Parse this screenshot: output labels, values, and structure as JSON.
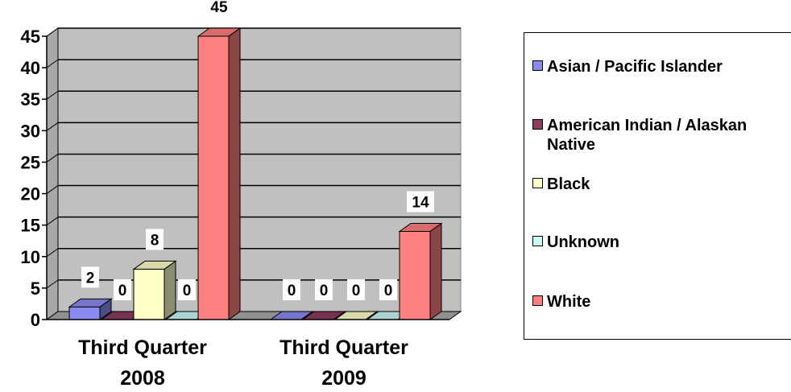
{
  "chart_data": {
    "type": "bar",
    "title": "",
    "xlabel": "",
    "ylabel": "",
    "ylim": [
      0,
      45
    ],
    "yticks": [
      0,
      5,
      10,
      15,
      20,
      25,
      30,
      35,
      40,
      45
    ],
    "grid": true,
    "three_d": true,
    "legend_position": "right",
    "categories": [
      "Third Quarter 2008",
      "Third Quarter 2009"
    ],
    "series": [
      {
        "name": "Asian / Pacific Islander",
        "values": [
          2,
          0
        ],
        "color": "#8A8AF0",
        "labels": [
          "2",
          "0"
        ]
      },
      {
        "name": "American Indian / Alaskan Native",
        "values": [
          0,
          0
        ],
        "color": "#8E3A5E",
        "labels": [
          "0",
          "0"
        ]
      },
      {
        "name": "Black",
        "values": [
          8,
          0
        ],
        "color": "#FFFFC8",
        "labels": [
          "8",
          "0"
        ]
      },
      {
        "name": "Unknown",
        "values": [
          0,
          0
        ],
        "color": "#C8F8F8",
        "labels": [
          "0",
          "0"
        ]
      },
      {
        "name": "White",
        "values": [
          45,
          14
        ],
        "color": "#FF8080",
        "labels": [
          "45",
          "14"
        ]
      }
    ],
    "wall_color": "#C0C0C0"
  }
}
